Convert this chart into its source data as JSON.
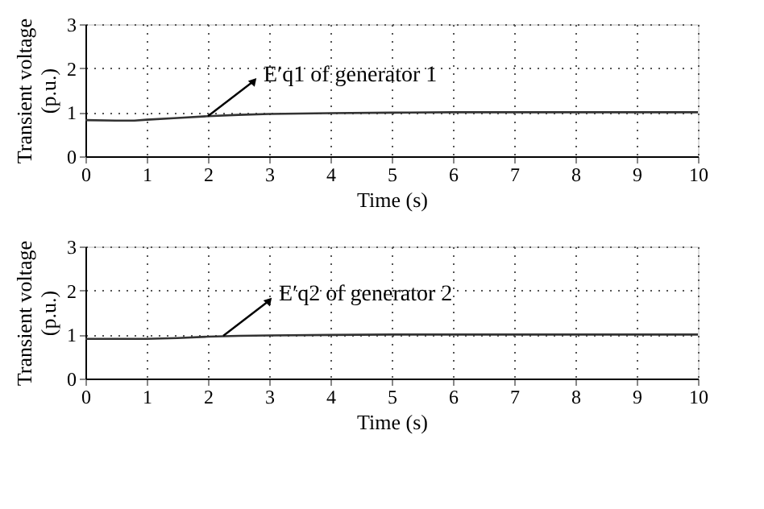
{
  "chart_data": [
    {
      "type": "line",
      "xlabel": "Time (s)",
      "ylabel": "Transient voltage (p.u.)",
      "xlim": [
        0,
        10
      ],
      "ylim": [
        0,
        3
      ],
      "xticks": [
        0,
        1,
        2,
        3,
        4,
        5,
        6,
        7,
        8,
        9,
        10
      ],
      "yticks": [
        0,
        1,
        2,
        3
      ],
      "grid": true,
      "line_style": "solid",
      "series": [
        {
          "color": "#333333",
          "x": [
            0,
            0.5,
            0.8,
            1,
            1.5,
            2,
            2.5,
            3,
            4,
            5,
            6,
            8,
            10
          ],
          "values": [
            0.82,
            0.81,
            0.81,
            0.83,
            0.87,
            0.91,
            0.94,
            0.96,
            0.98,
            0.99,
            1.0,
            1.0,
            1.0
          ]
        }
      ],
      "annotations": [
        {
          "text": "E′q1 of generator 1",
          "x": 2,
          "y": 0.91
        }
      ]
    },
    {
      "type": "line",
      "xlabel": "Time (s)",
      "ylabel": "Transient voltage (p.u.)",
      "xlim": [
        0,
        10
      ],
      "ylim": [
        0,
        3
      ],
      "xticks": [
        0,
        1,
        2,
        3,
        4,
        5,
        6,
        7,
        8,
        9,
        10
      ],
      "yticks": [
        0,
        1,
        2,
        3
      ],
      "grid": true,
      "line_style": "solid",
      "series": [
        {
          "color": "#333333",
          "x": [
            0,
            0.5,
            1,
            1.5,
            2,
            2.5,
            3,
            4,
            5,
            6,
            8,
            10
          ],
          "values": [
            0.9,
            0.9,
            0.9,
            0.92,
            0.95,
            0.97,
            0.98,
            0.99,
            1.0,
            1.0,
            1.0,
            1.0
          ]
        }
      ],
      "annotations": [
        {
          "text": "E′q2 of generator 2",
          "x": 2.25,
          "y": 0.97
        }
      ]
    }
  ]
}
